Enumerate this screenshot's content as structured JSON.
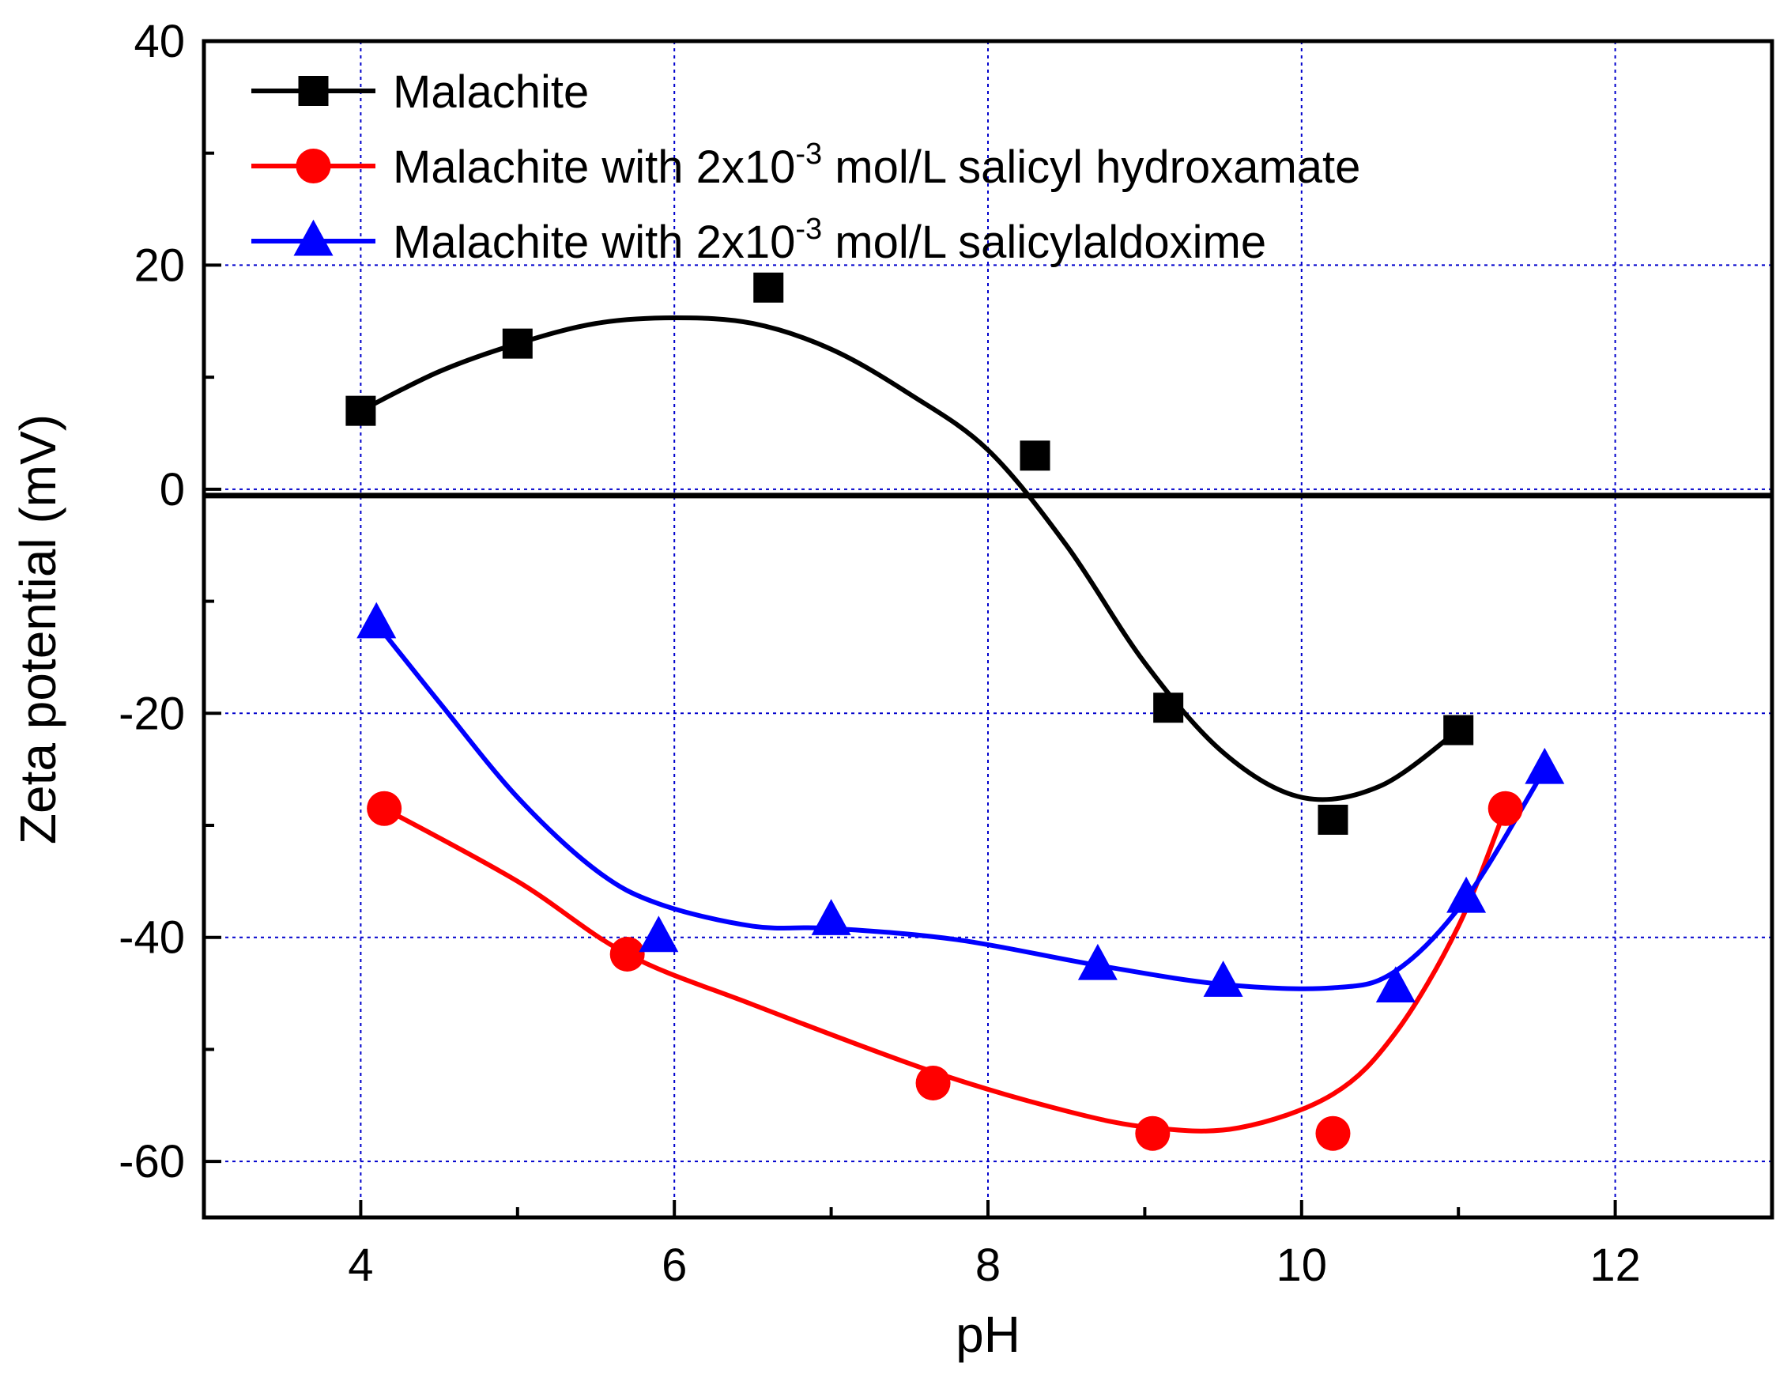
{
  "chart_data": {
    "type": "scatter",
    "title": "",
    "xlabel": "pH",
    "ylabel": "Zeta potential (mV)",
    "xlim": [
      3,
      13
    ],
    "ylim": [
      -65,
      40
    ],
    "x_ticks": [
      4,
      6,
      8,
      10,
      12
    ],
    "x_tick_labels": [
      "4",
      "6",
      "8",
      "10",
      "12"
    ],
    "y_ticks": [
      -60,
      -40,
      -20,
      0,
      20,
      40
    ],
    "y_tick_labels": [
      "-60",
      "-40",
      "-20",
      "0",
      "20",
      "40"
    ],
    "grid": true,
    "reference_line": 0,
    "legend_position": "top-left",
    "series": [
      {
        "name": "Malachite",
        "marker": "square",
        "color": "#000000",
        "x": [
          4.0,
          5.0,
          6.6,
          8.3,
          9.15,
          10.2,
          11.0
        ],
        "y": [
          7,
          13,
          18,
          3,
          -19.5,
          -29.5,
          -21.5
        ],
        "fit_x": [
          4.0,
          4.5,
          5.0,
          5.5,
          6.0,
          6.5,
          7.0,
          7.5,
          8.0,
          8.5,
          9.0,
          9.5,
          10.0,
          10.5,
          11.0
        ],
        "fit_y": [
          7,
          10.5,
          13,
          14.8,
          15.3,
          14.8,
          12.5,
          8.5,
          3.5,
          -5,
          -15.5,
          -23.5,
          -27.5,
          -26.5,
          -21.5
        ]
      },
      {
        "name": "Malachite with 2x10⁻³ mol/L salicyl hydroxamate",
        "legend_prefix": "Malachite with 2x10",
        "legend_superscript": "-3",
        "legend_suffix": " mol/L salicyl hydroxamate",
        "marker": "circle",
        "color": "#ff0000",
        "x": [
          4.15,
          5.7,
          7.65,
          9.05,
          10.2,
          11.3
        ],
        "y": [
          -28.5,
          -41.5,
          -53,
          -57.5,
          -57.5,
          -28.5
        ],
        "fit_x": [
          4.15,
          5.0,
          5.7,
          6.5,
          7.65,
          8.5,
          9.05,
          9.6,
          10.2,
          10.6,
          11.0,
          11.3
        ],
        "fit_y": [
          -28.5,
          -35,
          -41.5,
          -46,
          -52,
          -55.5,
          -57,
          -57,
          -54,
          -48.5,
          -39,
          -28.5
        ]
      },
      {
        "name": "Malachite with 2x10⁻³ mol/L salicylaldoxime",
        "legend_prefix": "Malachite with 2x10",
        "legend_superscript": "-3",
        "legend_suffix": " mol/L salicylaldoxime",
        "marker": "triangle",
        "color": "#0000ff",
        "x": [
          4.1,
          5.9,
          7.0,
          8.7,
          9.5,
          10.6,
          11.05,
          11.55
        ],
        "y": [
          -12,
          -40,
          -38.5,
          -42.5,
          -44,
          -44.5,
          -36.5,
          -25
        ],
        "fit_x": [
          4.1,
          4.5,
          5.0,
          5.5,
          5.9,
          6.5,
          7.0,
          7.8,
          8.7,
          9.5,
          10.2,
          10.6,
          11.05,
          11.55
        ],
        "fit_y": [
          -12,
          -19,
          -27.5,
          -34,
          -37,
          -39,
          -39.2,
          -40.2,
          -42.5,
          -44.2,
          -44.5,
          -43,
          -36.5,
          -25
        ]
      }
    ]
  }
}
